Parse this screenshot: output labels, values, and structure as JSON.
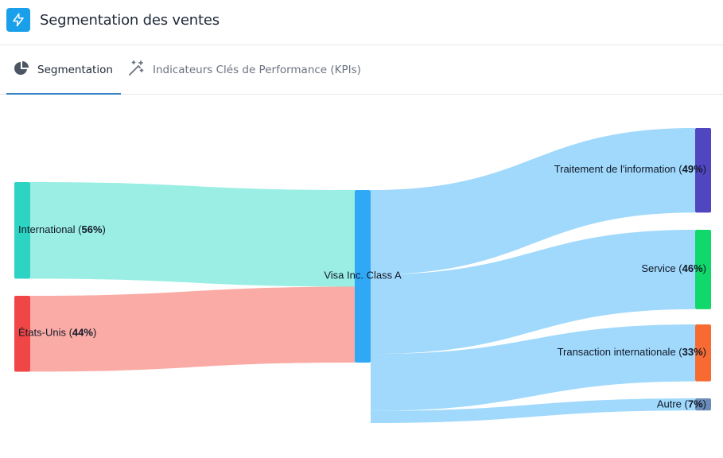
{
  "header": {
    "title": "Segmentation des ventes",
    "icon": "lightning-icon",
    "icon_bg": "#1aa0ea"
  },
  "tabs": [
    {
      "label": "Segmentation",
      "icon": "pie-chart-icon",
      "active": true
    },
    {
      "label": "Indicateurs Clés de Performance (KPIs)",
      "icon": "magic-wand-icon",
      "active": false
    }
  ],
  "chart_data": {
    "type": "sankey",
    "nodes": [
      {
        "id": "international",
        "label": "International",
        "pct": "56%",
        "color": "#2dd4c4"
      },
      {
        "id": "us",
        "label": "États-Unis",
        "pct": "44%",
        "color": "#f04646"
      },
      {
        "id": "visa",
        "label": "Visa Inc. Class A",
        "pct": "",
        "color": "#2fa9f6"
      },
      {
        "id": "traitement",
        "label": "Traitement de l'information",
        "pct": "49%",
        "color": "#5046c0"
      },
      {
        "id": "service",
        "label": "Service",
        "pct": "46%",
        "color": "#10d86a"
      },
      {
        "id": "transaction",
        "label": "Transaction internationale",
        "pct": "33%",
        "color": "#f76b32"
      },
      {
        "id": "autre",
        "label": "Autre",
        "pct": "7%",
        "color": "#6b8cb8"
      }
    ],
    "links": [
      {
        "source": "international",
        "target": "visa",
        "value": 56,
        "color": "#95ede3"
      },
      {
        "source": "us",
        "target": "visa",
        "value": 44,
        "color": "#fba6a1"
      },
      {
        "source": "visa",
        "target": "traitement",
        "value": 49,
        "color": "#9bd7fc"
      },
      {
        "source": "visa",
        "target": "service",
        "value": 46,
        "color": "#9bd7fc"
      },
      {
        "source": "visa",
        "target": "transaction",
        "value": 33,
        "color": "#9bd7fc"
      },
      {
        "source": "visa",
        "target": "autre",
        "value": 7,
        "color": "#9bd7fc"
      }
    ]
  }
}
